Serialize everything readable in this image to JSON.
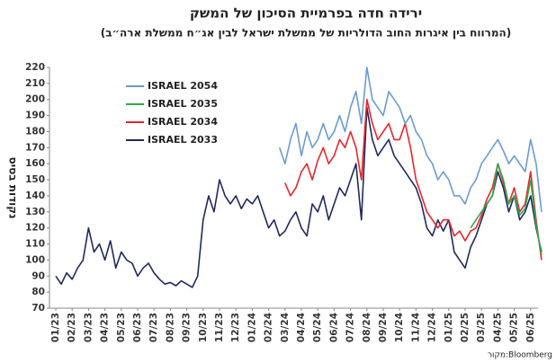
{
  "chart_data": {
    "type": "line",
    "title": "ירידה חדה בפרמיית הסיכון של המשק",
    "subtitle": "(המרווח בין איגרות החוב הדולריות של ממשלת ישראל לבין אג״ח ממשלת ארה״ב)",
    "y_label": "נקודות בסיס",
    "source": "מקור:Bloomberg",
    "categories": [
      "01/23",
      null,
      null,
      "02/23",
      null,
      null,
      "03/23",
      null,
      null,
      "04/23",
      null,
      null,
      "05/23",
      null,
      null,
      "06/23",
      null,
      null,
      "07/23",
      null,
      null,
      "08/23",
      null,
      null,
      "09/23",
      null,
      null,
      "10/23",
      null,
      null,
      "11/23",
      null,
      null,
      "12/23",
      null,
      null,
      "01/24",
      null,
      null,
      "02/24",
      null,
      null,
      "03/24",
      null,
      null,
      "04/24",
      null,
      null,
      "05/24",
      null,
      null,
      "06/24",
      null,
      null,
      "07/24",
      null,
      null,
      "08/24",
      null,
      null,
      "09/24",
      null,
      null,
      "10/24",
      null,
      null,
      "11/24",
      null,
      null,
      "12/24",
      null,
      null,
      "01/25",
      null,
      null,
      "02/25",
      null,
      null,
      "03/25",
      null,
      null,
      "04/25",
      null,
      null,
      "05/25",
      null,
      null,
      "06/25",
      null,
      null
    ],
    "series": [
      {
        "name": "ISRAEL 2054",
        "color": "#6a9bd1",
        "values": [
          null,
          null,
          null,
          null,
          null,
          null,
          null,
          null,
          null,
          null,
          null,
          null,
          null,
          null,
          null,
          null,
          null,
          null,
          null,
          null,
          null,
          null,
          null,
          null,
          null,
          null,
          null,
          null,
          null,
          null,
          null,
          null,
          null,
          null,
          null,
          null,
          null,
          null,
          null,
          null,
          null,
          170,
          160,
          175,
          185,
          165,
          180,
          170,
          175,
          185,
          175,
          180,
          190,
          180,
          195,
          205,
          185,
          220,
          200,
          195,
          190,
          205,
          200,
          195,
          185,
          190,
          180,
          175,
          165,
          160,
          150,
          155,
          150,
          140,
          140,
          135,
          145,
          150,
          160,
          165,
          170,
          175,
          168,
          160,
          165,
          160,
          155,
          175,
          160,
          130
        ]
      },
      {
        "name": "ISRAEL 2035",
        "color": "#2eaa4a",
        "values": [
          null,
          null,
          null,
          null,
          null,
          null,
          null,
          null,
          null,
          null,
          null,
          null,
          null,
          null,
          null,
          null,
          null,
          null,
          null,
          null,
          null,
          null,
          null,
          null,
          null,
          null,
          null,
          null,
          null,
          null,
          null,
          null,
          null,
          null,
          null,
          null,
          null,
          null,
          null,
          null,
          null,
          null,
          null,
          null,
          null,
          null,
          null,
          null,
          null,
          null,
          null,
          null,
          null,
          null,
          null,
          null,
          null,
          null,
          null,
          null,
          null,
          null,
          null,
          null,
          null,
          null,
          null,
          null,
          null,
          null,
          null,
          null,
          null,
          null,
          null,
          null,
          120,
          125,
          130,
          135,
          140,
          160,
          150,
          135,
          140,
          128,
          132,
          150,
          122,
          103
        ]
      },
      {
        "name": "ISRAEL 2034",
        "color": "#e8262a",
        "values": [
          null,
          null,
          null,
          null,
          null,
          null,
          null,
          null,
          null,
          null,
          null,
          null,
          null,
          null,
          null,
          null,
          null,
          null,
          null,
          null,
          null,
          null,
          null,
          null,
          null,
          null,
          null,
          null,
          null,
          null,
          null,
          null,
          null,
          null,
          null,
          null,
          null,
          null,
          null,
          null,
          null,
          null,
          148,
          140,
          145,
          155,
          160,
          150,
          162,
          170,
          160,
          165,
          175,
          170,
          180,
          170,
          150,
          200,
          185,
          175,
          180,
          185,
          175,
          175,
          185,
          170,
          150,
          140,
          130,
          125,
          120,
          125,
          125,
          115,
          118,
          112,
          118,
          120,
          128,
          138,
          145,
          160,
          148,
          135,
          145,
          130,
          135,
          155,
          125,
          100
        ]
      },
      {
        "name": "ISRAEL 2033",
        "color": "#1f2a5c",
        "values": [
          90,
          85,
          92,
          88,
          95,
          100,
          120,
          105,
          110,
          100,
          112,
          95,
          105,
          100,
          98,
          90,
          95,
          98,
          92,
          88,
          85,
          86,
          84,
          87,
          85,
          83,
          90,
          125,
          140,
          130,
          150,
          140,
          135,
          140,
          132,
          138,
          135,
          140,
          130,
          120,
          125,
          115,
          118,
          125,
          130,
          120,
          115,
          135,
          130,
          140,
          125,
          135,
          145,
          140,
          150,
          160,
          125,
          195,
          175,
          165,
          170,
          175,
          165,
          160,
          155,
          150,
          145,
          135,
          120,
          115,
          125,
          118,
          125,
          105,
          100,
          95,
          108,
          115,
          125,
          135,
          140,
          155,
          145,
          130,
          140,
          125,
          130,
          140,
          120,
          105
        ]
      }
    ],
    "ylim": [
      70,
      220
    ],
    "yticks": [
      70,
      80,
      90,
      100,
      110,
      120,
      130,
      140,
      150,
      160,
      170,
      180,
      190,
      200,
      210,
      220
    ],
    "grid": false
  }
}
